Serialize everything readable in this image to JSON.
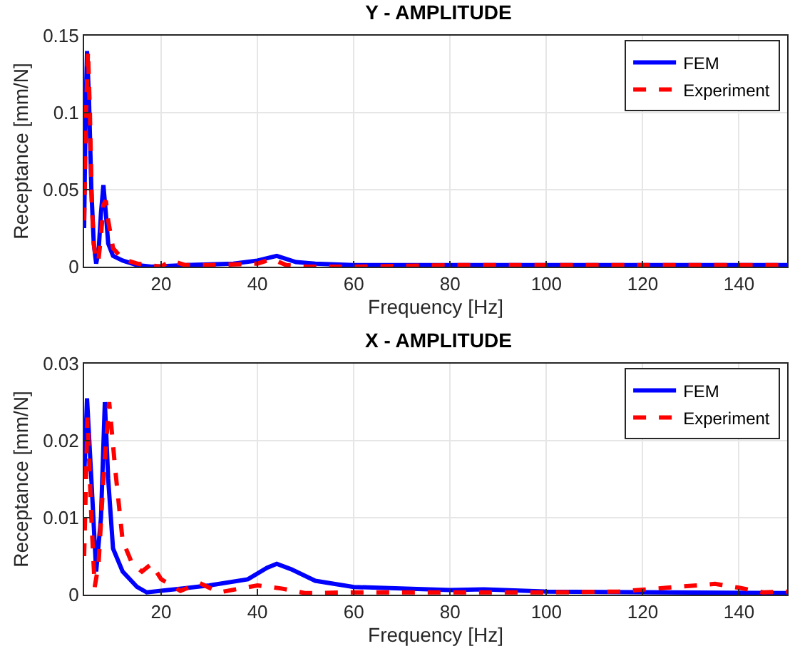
{
  "chart_data": [
    {
      "type": "line",
      "title": "Y - AMPLITUDE",
      "xlabel": "Frequency [Hz]",
      "ylabel": "Receptance [mm/N]",
      "xlim": [
        4,
        150
      ],
      "xticks": [
        20,
        40,
        60,
        80,
        100,
        120,
        140
      ],
      "ylim": [
        0,
        0.15
      ],
      "yticks": [
        0,
        0.05,
        0.1,
        0.15
      ],
      "grid": true,
      "legend": "top right",
      "series": [
        {
          "name": "FEM",
          "color": "#0000ff",
          "line_style": "solid",
          "x": [
            4,
            4.3,
            4.6,
            5,
            5.5,
            6,
            6.5,
            7,
            7.5,
            8,
            8.5,
            9,
            10,
            12,
            15,
            18,
            25,
            35,
            40,
            44,
            48,
            52,
            60,
            80,
            100,
            150
          ],
          "values": [
            0.025,
            0.1,
            0.14,
            0.11,
            0.05,
            0.015,
            0.002,
            0.01,
            0.035,
            0.053,
            0.035,
            0.015,
            0.007,
            0.004,
            0.001,
            0,
            0.001,
            0.002,
            0.004,
            0.007,
            0.003,
            0.002,
            0.001,
            0.001,
            0.001,
            0.001
          ]
        },
        {
          "name": "Experiment",
          "color": "#ff0000",
          "line_style": "dashed",
          "x": [
            4,
            4.4,
            4.8,
            5.2,
            5.6,
            6,
            6.5,
            7,
            7.5,
            8,
            8.5,
            9,
            10,
            12,
            15,
            20,
            22,
            25,
            30,
            40,
            43,
            46,
            50,
            60,
            80,
            100,
            150
          ],
          "values": [
            0.03,
            0.1,
            0.14,
            0.1,
            0.04,
            0.015,
            0.003,
            0.005,
            0.02,
            0.04,
            0.043,
            0.03,
            0.012,
            0.005,
            0.002,
            0,
            0.004,
            0.001,
            0.001,
            0.002,
            0.005,
            0.001,
            0,
            0,
            0.001,
            0.001,
            0.001
          ]
        }
      ]
    },
    {
      "type": "line",
      "title": "X - AMPLITUDE",
      "xlabel": "Frequency [Hz]",
      "ylabel": "Receptance [mm/N]",
      "xlim": [
        4,
        150
      ],
      "xticks": [
        20,
        40,
        60,
        80,
        100,
        120,
        140
      ],
      "ylim": [
        0,
        0.03
      ],
      "yticks": [
        0,
        0.01,
        0.02,
        0.03
      ],
      "grid": true,
      "legend": "top right",
      "series": [
        {
          "name": "FEM",
          "color": "#0000ff",
          "line_style": "solid",
          "x": [
            4,
            4.6,
            5.5,
            6.5,
            7.5,
            8.3,
            9,
            10,
            12,
            15,
            17,
            20,
            30,
            38,
            42,
            44,
            47,
            52,
            60,
            80,
            87,
            100,
            150
          ],
          "values": [
            0.015,
            0.0255,
            0.015,
            0.003,
            0.01,
            0.025,
            0.015,
            0.006,
            0.003,
            0.001,
            0.0003,
            0.0005,
            0.0012,
            0.002,
            0.0035,
            0.004,
            0.0033,
            0.0018,
            0.001,
            0.0006,
            0.0007,
            0.0004,
            0.0002
          ]
        },
        {
          "name": "Experiment",
          "color": "#ff0000",
          "line_style": "dashed",
          "x": [
            4,
            4.7,
            5.5,
            6.2,
            7,
            8,
            9.2,
            10.5,
            12,
            14,
            16,
            18,
            20,
            24,
            28,
            32,
            40,
            45,
            50,
            60,
            80,
            100,
            115,
            125,
            135,
            140,
            145,
            150
          ],
          "values": [
            0.005,
            0.023,
            0.01,
            0.001,
            0.004,
            0.015,
            0.025,
            0.016,
            0.007,
            0.004,
            0.003,
            0.004,
            0.002,
            0.0005,
            0.0015,
            0.0003,
            0.0012,
            0.0008,
            0.0002,
            0.0003,
            0.0003,
            0.0003,
            0.0004,
            0.0009,
            0.0014,
            0.0009,
            0.0003,
            0.0004
          ]
        }
      ]
    }
  ]
}
